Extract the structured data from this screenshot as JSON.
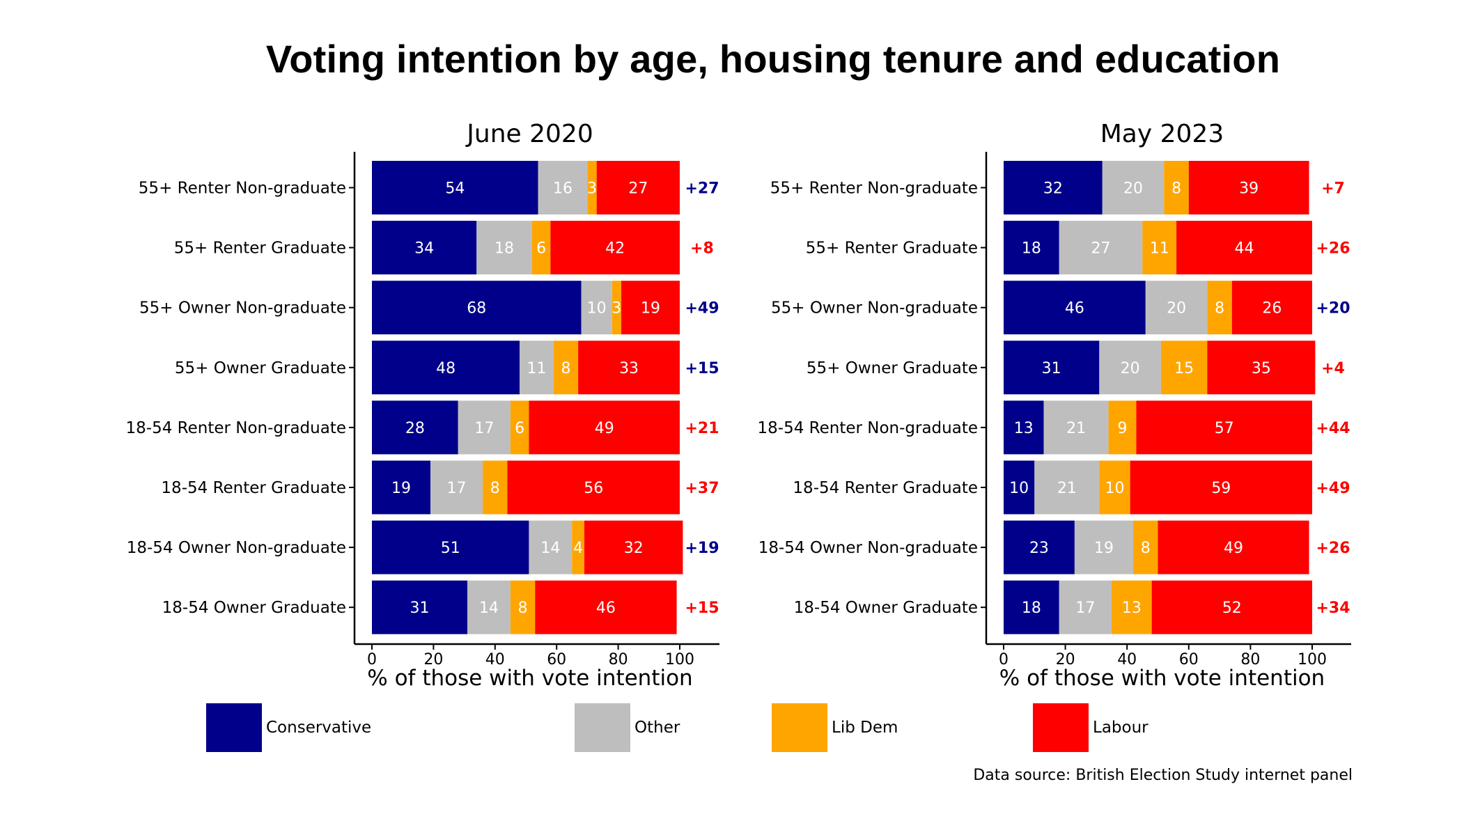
{
  "title": "Voting intention by age, housing tenure and education",
  "source": "Data source: British Election Study internet panel",
  "legend": [
    {
      "key": "con",
      "label": "Conservative",
      "color": "#00008B"
    },
    {
      "key": "oth",
      "label": "Other",
      "color": "#BEBEBE"
    },
    {
      "key": "ld",
      "label": "Lib Dem",
      "color": "#FFA500"
    },
    {
      "key": "lab",
      "label": "Labour",
      "color": "#FF0000"
    }
  ],
  "chart_data": [
    {
      "type": "bar",
      "stacked": true,
      "orientation": "horizontal",
      "title": "June 2020",
      "xlabel": "% of those with vote intention",
      "xlim": [
        0,
        100
      ],
      "xticks": [
        0,
        20,
        40,
        60,
        80,
        100
      ],
      "categories": [
        "55+ Renter Non-graduate",
        "55+ Renter Graduate",
        "55+ Owner Non-graduate",
        "55+ Owner Graduate",
        "18-54 Renter Non-graduate",
        "18-54 Renter Graduate",
        "18-54 Owner Non-graduate",
        "18-54 Owner Graduate"
      ],
      "series": [
        {
          "name": "Conservative",
          "color": "#00008B",
          "values": [
            54,
            34,
            68,
            48,
            28,
            19,
            51,
            31
          ]
        },
        {
          "name": "Other",
          "color": "#BEBEBE",
          "values": [
            16,
            18,
            10,
            11,
            17,
            17,
            14,
            14
          ]
        },
        {
          "name": "Lib Dem",
          "color": "#FFA500",
          "values": [
            3,
            6,
            3,
            8,
            6,
            8,
            4,
            8
          ]
        },
        {
          "name": "Labour",
          "color": "#FF0000",
          "values": [
            27,
            42,
            19,
            33,
            49,
            56,
            32,
            46
          ]
        }
      ],
      "leads": [
        "+27",
        "+8",
        "+49",
        "+15",
        "+21",
        "+37",
        "+19",
        "+15"
      ],
      "lead_party": [
        "con",
        "lab",
        "con",
        "con",
        "lab",
        "lab",
        "con",
        "lab"
      ]
    },
    {
      "type": "bar",
      "stacked": true,
      "orientation": "horizontal",
      "title": "May 2023",
      "xlabel": "% of those with vote intention",
      "xlim": [
        0,
        100
      ],
      "xticks": [
        0,
        20,
        40,
        60,
        80,
        100
      ],
      "categories": [
        "55+ Renter Non-graduate",
        "55+ Renter Graduate",
        "55+ Owner Non-graduate",
        "55+ Owner Graduate",
        "18-54 Renter Non-graduate",
        "18-54 Renter Graduate",
        "18-54 Owner Non-graduate",
        "18-54 Owner Graduate"
      ],
      "series": [
        {
          "name": "Conservative",
          "color": "#00008B",
          "values": [
            32,
            18,
            46,
            31,
            13,
            10,
            23,
            18
          ]
        },
        {
          "name": "Other",
          "color": "#BEBEBE",
          "values": [
            20,
            27,
            20,
            20,
            21,
            21,
            19,
            17
          ]
        },
        {
          "name": "Lib Dem",
          "color": "#FFA500",
          "values": [
            8,
            11,
            8,
            15,
            9,
            10,
            8,
            13
          ]
        },
        {
          "name": "Labour",
          "color": "#FF0000",
          "values": [
            39,
            44,
            26,
            35,
            57,
            59,
            49,
            52
          ]
        }
      ],
      "leads": [
        "+7",
        "+26",
        "+20",
        "+4",
        "+44",
        "+49",
        "+26",
        "+34"
      ],
      "lead_party": [
        "lab",
        "lab",
        "con",
        "lab",
        "lab",
        "lab",
        "lab",
        "lab"
      ]
    }
  ]
}
